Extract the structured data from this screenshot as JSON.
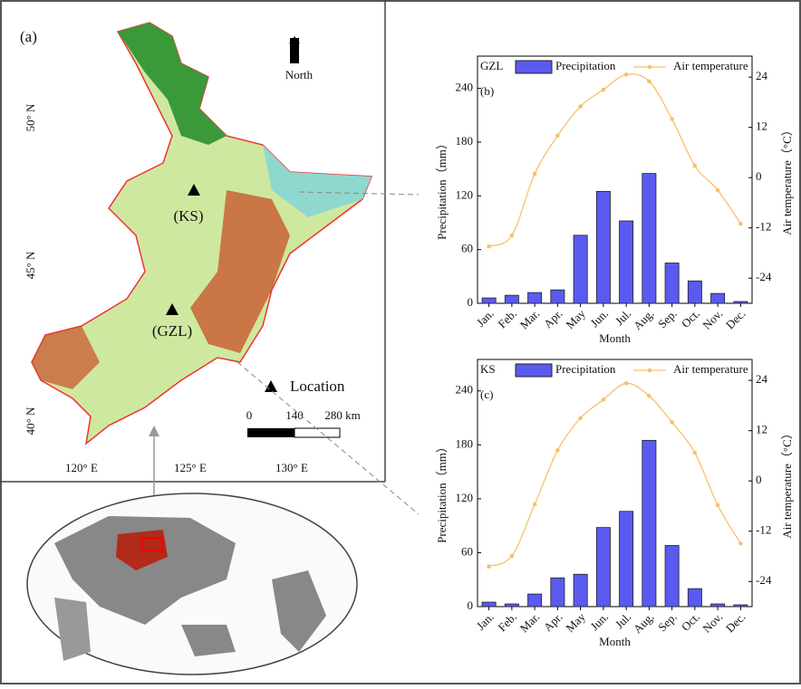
{
  "map": {
    "panel_label": "(a)",
    "north": "North",
    "lat_labels": [
      "50° N",
      "45° N",
      "40° N"
    ],
    "lon_labels": [
      "120° E",
      "125° E",
      "130° E"
    ],
    "sites": [
      "(KS)",
      "(GZL)"
    ],
    "legend": "Location",
    "scale": [
      "0",
      "140",
      "280 km"
    ]
  },
  "chart_data": [
    {
      "type": "bar",
      "station": "GZL",
      "panel_label": "(b)",
      "x_label": "Month",
      "y_label": "Precipitation（mm）",
      "y2_label": "Air temperature（°C）",
      "categories": [
        "Jan.",
        "Feb.",
        "Mar.",
        "Apr.",
        "May",
        "Jun.",
        "Jul.",
        "Aug.",
        "Sep.",
        "Oct.",
        "Nov.",
        "Dec."
      ],
      "series": [
        {
          "name": "Precipitation",
          "type": "bar",
          "color": "#5a5af0",
          "values": [
            6,
            9,
            12,
            15,
            76,
            125,
            92,
            145,
            45,
            25,
            11,
            2
          ]
        },
        {
          "name": "Air temperature",
          "type": "line",
          "axis": "y2",
          "color": "#f5c26b",
          "values": [
            -16.4,
            -13.8,
            0.9,
            10,
            17,
            21,
            24.6,
            23,
            14,
            2.8,
            -3,
            -11
          ]
        }
      ],
      "ylim": [
        0,
        276
      ],
      "yticks": [
        0,
        60,
        120,
        180,
        240
      ],
      "y2lim": [
        -30,
        29
      ],
      "y2ticks": [
        -24,
        -12,
        0,
        12,
        24
      ]
    },
    {
      "type": "bar",
      "station": "KS",
      "panel_label": "(c)",
      "x_label": "Month",
      "y_label": "Precipitation（mm）",
      "y2_label": "Air temperature（°C）",
      "categories": [
        "Jan.",
        "Feb.",
        "Mar.",
        "Apr.",
        "May",
        "Jun.",
        "Jul.",
        "Aug.",
        "Sep.",
        "Oct.",
        "Nov.",
        "Dec."
      ],
      "series": [
        {
          "name": "Precipitation",
          "type": "bar",
          "color": "#5a5af0",
          "values": [
            5,
            3,
            14,
            32,
            36,
            88,
            106,
            185,
            68,
            20,
            3,
            2
          ]
        },
        {
          "name": "Air temperature",
          "type": "line",
          "axis": "y2",
          "color": "#f5c26b",
          "values": [
            -20.4,
            -17.9,
            -5.6,
            7.3,
            15,
            19.4,
            23.3,
            20.3,
            14,
            6.7,
            -5.8,
            -14.9
          ]
        }
      ],
      "ylim": [
        0,
        275
      ],
      "yticks": [
        0,
        60,
        120,
        180,
        240
      ],
      "y2lim": [
        -30,
        29
      ],
      "y2ticks": [
        -24,
        -12,
        0,
        12,
        24
      ]
    }
  ]
}
